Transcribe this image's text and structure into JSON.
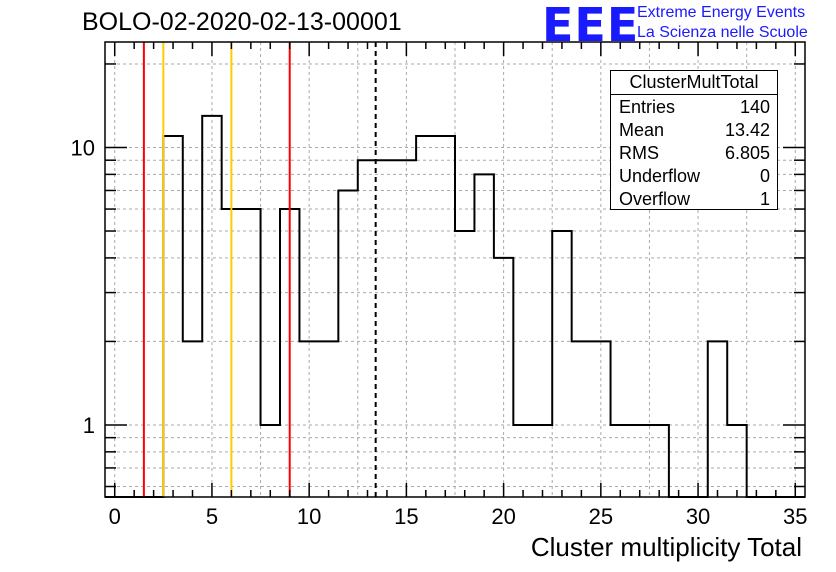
{
  "header": {
    "run_title": "BOLO-02-2020-02-13-00001",
    "logo_text": "EEE",
    "logo_line1": "Extreme Energy Events",
    "logo_line2": "La Scienza nelle Scuole"
  },
  "stats_box": {
    "title": "ClusterMultTotal",
    "rows": [
      {
        "label": "Entries",
        "value": "140"
      },
      {
        "label": "Mean",
        "value": "13.42"
      },
      {
        "label": "RMS",
        "value": "6.805"
      },
      {
        "label": "Underflow",
        "value": "0"
      },
      {
        "label": "Overflow",
        "value": "1"
      }
    ]
  },
  "colors": {
    "histogram": "#000000",
    "red_marker": "#ff0000",
    "yellow_marker": "#ffcc00",
    "logo_blue": "#1a1aff"
  },
  "chart_data": {
    "type": "bar",
    "title": "BOLO-02-2020-02-13-00001",
    "xlabel": "Cluster multiplicity Total",
    "ylabel": "",
    "xlim": [
      -0.5,
      35.5
    ],
    "ylim": [
      0.55,
      24
    ],
    "yscale": "log",
    "grid": true,
    "bin_edges": [
      -0.5,
      0.5,
      1.5,
      2.5,
      3.5,
      4.5,
      5.5,
      6.5,
      7.5,
      8.5,
      9.5,
      10.5,
      11.5,
      12.5,
      13.5,
      14.5,
      15.5,
      16.5,
      17.5,
      18.5,
      19.5,
      20.5,
      21.5,
      22.5,
      23.5,
      24.5,
      25.5,
      26.5,
      27.5,
      28.5,
      29.5,
      30.5,
      31.5,
      32.5,
      33.5,
      34.5,
      35.5
    ],
    "values": [
      0,
      0,
      0,
      11,
      2,
      13,
      6,
      6,
      1,
      6,
      2,
      2,
      7,
      9,
      9,
      9,
      11,
      11,
      5,
      8,
      4,
      1,
      1,
      5,
      2,
      2,
      1,
      1,
      1,
      0,
      0,
      2,
      1,
      0,
      0,
      0
    ],
    "x_ticks": [
      0,
      5,
      10,
      15,
      20,
      25,
      30,
      35
    ],
    "x_tick_labels": [
      "0",
      "5",
      "10",
      "15",
      "20",
      "25",
      "30",
      "35"
    ],
    "y_ticks": [
      1,
      10
    ],
    "y_tick_labels": [
      "1",
      "10"
    ],
    "markers": [
      {
        "x": 1.5,
        "color": "red",
        "style": "solid"
      },
      {
        "x": 2.5,
        "color": "yellow",
        "style": "solid"
      },
      {
        "x": 6.0,
        "color": "yellow",
        "style": "solid"
      },
      {
        "x": 9.0,
        "color": "red",
        "style": "solid"
      },
      {
        "x": 13.42,
        "color": "black",
        "style": "dashed"
      }
    ]
  }
}
